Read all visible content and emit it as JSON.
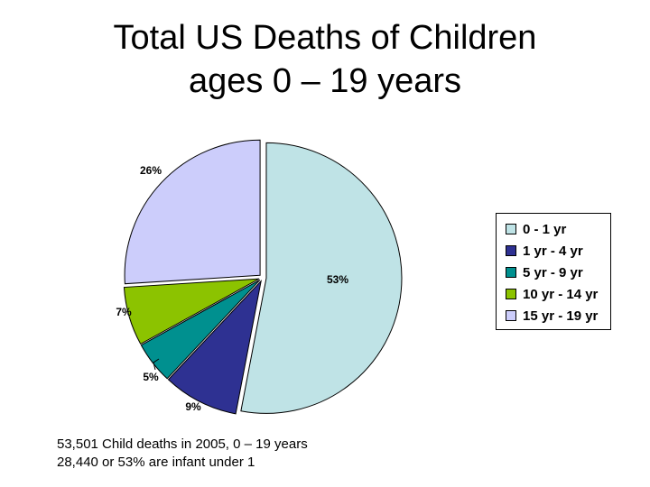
{
  "title_lines": [
    "Total US Deaths of Children",
    "ages 0 – 19 years"
  ],
  "chart_data": {
    "type": "pie",
    "title": "Total US Deaths of Children ages 0 – 19 years",
    "slices": [
      {
        "label": "0 - 1 yr",
        "value": 53,
        "display": "53%",
        "color": "#bfe3e6"
      },
      {
        "label": "1 yr - 4 yr",
        "value": 9,
        "display": "9%",
        "color": "#2e3192"
      },
      {
        "label": "5 yr - 9 yr",
        "value": 5,
        "display": "5%",
        "color": "#00908f"
      },
      {
        "label": "10 yr - 14 yr",
        "value": 7,
        "display": "7%",
        "color": "#8cc300"
      },
      {
        "label": "15 yr - 19 yr",
        "value": 26,
        "display": "26%",
        "color": "#cccdfb"
      }
    ],
    "legend_position": "right",
    "exploded": true
  },
  "footnote": [
    "53,501 Child deaths in 2005, 0 – 19 years",
    "28,440 or 53% are infant under 1"
  ]
}
